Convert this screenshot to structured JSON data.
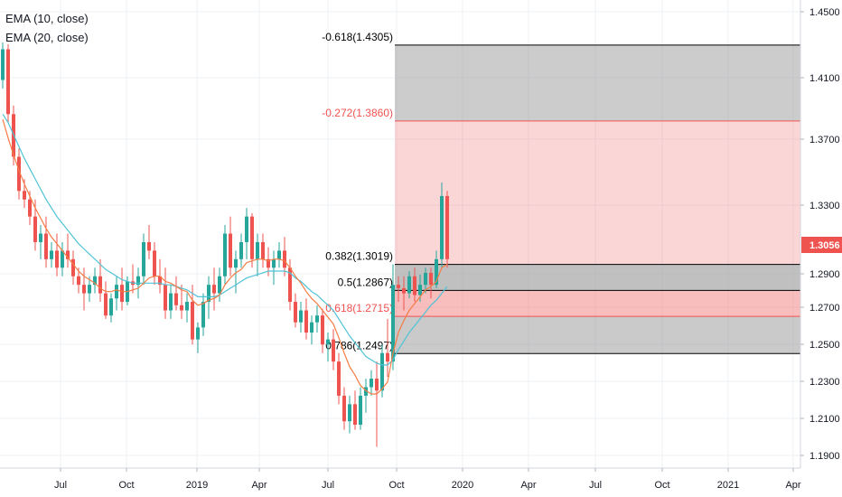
{
  "legend": {
    "ema10": "EMA (10, close)",
    "ema20": "EMA (20, close)"
  },
  "chart_data": {
    "type": "candlestick",
    "x_ticks": [
      "Jul",
      "Oct",
      "2019",
      "Apr",
      "Jul",
      "Oct",
      "2020",
      "Apr",
      "Jul",
      "Oct",
      "2021",
      "Apr"
    ],
    "y_ticks": [
      "1.4500",
      "1.4100",
      "1.3700",
      "1.3300",
      "1.2900",
      "1.2700",
      "1.2500",
      "1.2300",
      "1.2100",
      "1.1900"
    ],
    "ylim": [
      1.184,
      1.456
    ],
    "last_price": "1.3056",
    "colors": {
      "up": "#26a69a",
      "down": "#ef5350",
      "ema10": "#f57c44",
      "ema20": "#4fc3d6",
      "fib_dark": "#9e9e9e",
      "fib_red": "#f06c6c"
    },
    "fib_levels": [
      {
        "label": "-0.618(1.4305)",
        "price": 1.4305,
        "color": "#000000"
      },
      {
        "label": "-0.272(1.3860)",
        "price": 1.386,
        "color": "#ef5350"
      },
      {
        "label": "0.382(1.3019)",
        "price": 1.3019,
        "color": "#000000"
      },
      {
        "label": "0.5(1.2867)",
        "price": 1.2867,
        "color": "#000000"
      },
      {
        "label": "0.618(1.2715)",
        "price": 1.2715,
        "color": "#ef5350"
      },
      {
        "label": "0.786(1.2497)",
        "price": 1.2497,
        "color": "#000000"
      }
    ],
    "candles": [
      [
        1.41,
        1.432,
        1.405,
        1.428
      ],
      [
        1.428,
        1.431,
        1.385,
        1.39
      ],
      [
        1.39,
        1.395,
        1.36,
        1.365
      ],
      [
        1.365,
        1.37,
        1.34,
        1.345
      ],
      [
        1.345,
        1.352,
        1.335,
        1.34
      ],
      [
        1.34,
        1.345,
        1.325,
        1.33
      ],
      [
        1.33,
        1.34,
        1.31,
        1.315
      ],
      [
        1.315,
        1.325,
        1.305,
        1.32
      ],
      [
        1.32,
        1.33,
        1.3,
        1.305
      ],
      [
        1.305,
        1.315,
        1.3,
        1.31
      ],
      [
        1.31,
        1.32,
        1.295,
        1.3
      ],
      [
        1.3,
        1.315,
        1.295,
        1.31
      ],
      [
        1.31,
        1.32,
        1.3,
        1.305
      ],
      [
        1.305,
        1.31,
        1.29,
        1.295
      ],
      [
        1.295,
        1.3,
        1.285,
        1.29
      ],
      [
        1.29,
        1.3,
        1.275,
        1.285
      ],
      [
        1.285,
        1.295,
        1.28,
        1.29
      ],
      [
        1.29,
        1.3,
        1.285,
        1.295
      ],
      [
        1.295,
        1.305,
        1.28,
        1.285
      ],
      [
        1.285,
        1.292,
        1.27,
        1.272
      ],
      [
        1.272,
        1.285,
        1.268,
        1.282
      ],
      [
        1.282,
        1.295,
        1.275,
        1.29
      ],
      [
        1.29,
        1.3,
        1.275,
        1.28
      ],
      [
        1.28,
        1.295,
        1.278,
        1.292
      ],
      [
        1.292,
        1.302,
        1.285,
        1.29
      ],
      [
        1.29,
        1.3,
        1.282,
        1.295
      ],
      [
        1.295,
        1.32,
        1.29,
        1.315
      ],
      [
        1.315,
        1.325,
        1.305,
        1.31
      ],
      [
        1.31,
        1.315,
        1.29,
        1.295
      ],
      [
        1.295,
        1.305,
        1.285,
        1.29
      ],
      [
        1.29,
        1.3,
        1.27,
        1.275
      ],
      [
        1.275,
        1.29,
        1.27,
        1.285
      ],
      [
        1.285,
        1.295,
        1.275,
        1.278
      ],
      [
        1.278,
        1.29,
        1.27,
        1.275
      ],
      [
        1.275,
        1.285,
        1.268,
        1.28
      ],
      [
        1.28,
        1.29,
        1.255,
        1.258
      ],
      [
        1.258,
        1.268,
        1.25,
        1.265
      ],
      [
        1.265,
        1.285,
        1.26,
        1.28
      ],
      [
        1.28,
        1.295,
        1.27,
        1.29
      ],
      [
        1.29,
        1.3,
        1.275,
        1.285
      ],
      [
        1.285,
        1.3,
        1.28,
        1.295
      ],
      [
        1.295,
        1.325,
        1.29,
        1.32
      ],
      [
        1.32,
        1.33,
        1.295,
        1.3
      ],
      [
        1.3,
        1.31,
        1.285,
        1.305
      ],
      [
        1.305,
        1.32,
        1.3,
        1.315
      ],
      [
        1.315,
        1.335,
        1.305,
        1.33
      ],
      [
        1.33,
        1.332,
        1.3,
        1.305
      ],
      [
        1.305,
        1.32,
        1.295,
        1.315
      ],
      [
        1.315,
        1.32,
        1.3,
        1.305
      ],
      [
        1.305,
        1.312,
        1.295,
        1.3
      ],
      [
        1.3,
        1.31,
        1.29,
        1.305
      ],
      [
        1.305,
        1.315,
        1.3,
        1.31
      ],
      [
        1.31,
        1.318,
        1.295,
        1.3
      ],
      [
        1.3,
        1.305,
        1.275,
        1.28
      ],
      [
        1.28,
        1.285,
        1.265,
        1.268
      ],
      [
        1.268,
        1.28,
        1.262,
        1.275
      ],
      [
        1.275,
        1.282,
        1.258,
        1.262
      ],
      [
        1.262,
        1.272,
        1.255,
        1.268
      ],
      [
        1.268,
        1.278,
        1.262,
        1.272
      ],
      [
        1.272,
        1.276,
        1.25,
        1.255
      ],
      [
        1.255,
        1.262,
        1.245,
        1.258
      ],
      [
        1.258,
        1.264,
        1.24,
        1.245
      ],
      [
        1.245,
        1.25,
        1.22,
        1.225
      ],
      [
        1.225,
        1.23,
        1.205,
        1.21
      ],
      [
        1.21,
        1.225,
        1.203,
        1.22
      ],
      [
        1.22,
        1.228,
        1.205,
        1.208
      ],
      [
        1.208,
        1.23,
        1.205,
        1.225
      ],
      [
        1.225,
        1.235,
        1.215,
        1.23
      ],
      [
        1.23,
        1.24,
        1.225,
        1.235
      ],
      [
        1.235,
        1.245,
        1.195,
        1.228
      ],
      [
        1.228,
        1.255,
        1.224,
        1.25
      ],
      [
        1.25,
        1.27,
        1.236,
        1.245
      ],
      [
        1.245,
        1.302,
        1.24,
        1.29
      ],
      [
        1.29,
        1.295,
        1.28,
        1.288
      ],
      [
        1.288,
        1.295,
        1.275,
        1.285
      ],
      [
        1.285,
        1.298,
        1.282,
        1.295
      ],
      [
        1.295,
        1.3,
        1.28,
        1.284
      ],
      [
        1.284,
        1.296,
        1.28,
        1.29
      ],
      [
        1.29,
        1.3,
        1.285,
        1.297
      ],
      [
        1.297,
        1.3,
        1.282,
        1.29
      ],
      [
        1.29,
        1.31,
        1.288,
        1.305
      ],
      [
        1.305,
        1.35,
        1.3,
        1.342
      ],
      [
        1.342,
        1.345,
        1.3,
        1.305
      ]
    ],
    "ema10": [
      1.387,
      1.376,
      1.366,
      1.357,
      1.349,
      1.342,
      1.335,
      1.329,
      1.323,
      1.318,
      1.314,
      1.31,
      1.306,
      1.302,
      1.298,
      1.295,
      1.293,
      1.291,
      1.288,
      1.286,
      1.286,
      1.287,
      1.286,
      1.286,
      1.287,
      1.288,
      1.291,
      1.294,
      1.295,
      1.295,
      1.292,
      1.291,
      1.289,
      1.287,
      1.286,
      1.281,
      1.278,
      1.279,
      1.281,
      1.282,
      1.284,
      1.29,
      1.294,
      1.297,
      1.299,
      1.303,
      1.304,
      1.305,
      1.305,
      1.304,
      1.305,
      1.305,
      1.304,
      1.3,
      1.295,
      1.291,
      1.286,
      1.282,
      1.279,
      1.275,
      1.271,
      1.267,
      1.259,
      1.25,
      1.242,
      1.237,
      1.231,
      1.228,
      1.226,
      1.226,
      1.229,
      1.233,
      1.25,
      1.262,
      1.269,
      1.275,
      1.279,
      1.283,
      1.287,
      1.289,
      1.292,
      1.3,
      1.302
    ],
    "ema20": [
      1.39,
      1.385,
      1.378,
      1.371,
      1.364,
      1.358,
      1.352,
      1.346,
      1.34,
      1.335,
      1.33,
      1.326,
      1.322,
      1.318,
      1.314,
      1.311,
      1.308,
      1.305,
      1.302,
      1.299,
      1.297,
      1.295,
      1.293,
      1.292,
      1.291,
      1.291,
      1.291,
      1.291,
      1.291,
      1.291,
      1.29,
      1.29,
      1.289,
      1.288,
      1.287,
      1.285,
      1.283,
      1.283,
      1.283,
      1.283,
      1.284,
      1.286,
      1.288,
      1.29,
      1.292,
      1.294,
      1.295,
      1.296,
      1.297,
      1.298,
      1.298,
      1.298,
      1.298,
      1.297,
      1.294,
      1.292,
      1.289,
      1.286,
      1.284,
      1.281,
      1.278,
      1.275,
      1.27,
      1.265,
      1.26,
      1.256,
      1.252,
      1.248,
      1.246,
      1.244,
      1.243,
      1.243,
      1.246,
      1.252,
      1.257,
      1.262,
      1.266,
      1.27,
      1.274,
      1.278,
      1.281,
      1.285,
      1.289
    ]
  }
}
